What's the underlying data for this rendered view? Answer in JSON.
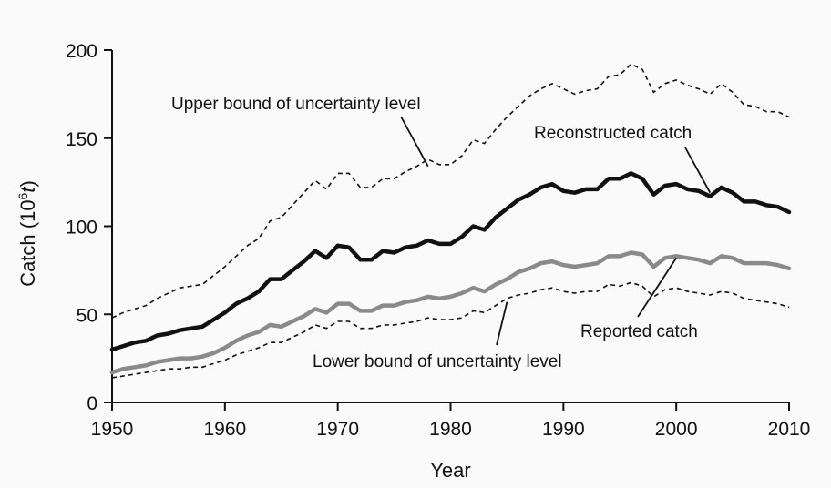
{
  "chart_data": {
    "type": "line",
    "title": "",
    "xlabel": "Year",
    "ylabel": "Catch (10",
    "ylabel_sup": "6",
    "ylabel_unit": "t",
    "ylabel_close": ")",
    "xlim": [
      1950,
      2010
    ],
    "ylim": [
      0,
      200
    ],
    "x_ticks": [
      1950,
      1960,
      1970,
      1980,
      1990,
      2000,
      2010
    ],
    "y_ticks": [
      0,
      50,
      100,
      150,
      200
    ],
    "grid": false,
    "legend": "none (series labeled by annotations)",
    "x": [
      1950,
      1951,
      1952,
      1953,
      1954,
      1955,
      1956,
      1957,
      1958,
      1959,
      1960,
      1961,
      1962,
      1963,
      1964,
      1965,
      1966,
      1967,
      1968,
      1969,
      1970,
      1971,
      1972,
      1973,
      1974,
      1975,
      1976,
      1977,
      1978,
      1979,
      1980,
      1981,
      1982,
      1983,
      1984,
      1985,
      1986,
      1987,
      1988,
      1989,
      1990,
      1991,
      1992,
      1993,
      1994,
      1995,
      1996,
      1997,
      1998,
      1999,
      2000,
      2001,
      2002,
      2003,
      2004,
      2005,
      2006,
      2007,
      2008,
      2009,
      2010
    ],
    "series": [
      {
        "key": "upper",
        "color": "#111111",
        "style": "dashed",
        "values": [
          48,
          51,
          53,
          55,
          59,
          62,
          65,
          66,
          67,
          72,
          77,
          83,
          89,
          93,
          103,
          105,
          112,
          119,
          126,
          121,
          130,
          130,
          122,
          122,
          127,
          127,
          131,
          134,
          138,
          135,
          135,
          140,
          149,
          147,
          155,
          162,
          168,
          174,
          178,
          181,
          178,
          175,
          177,
          178,
          185,
          186,
          192,
          189,
          176,
          181,
          183,
          180,
          178,
          175,
          181,
          176,
          169,
          168,
          165,
          165,
          162
        ],
        "color_name": "black"
      },
      {
        "key": "reconstructed",
        "color": "#111111",
        "style": "solid-thick",
        "values": [
          30,
          32,
          34,
          35,
          38,
          39,
          41,
          42,
          43,
          47,
          51,
          56,
          59,
          63,
          70,
          70,
          75,
          80,
          86,
          82,
          89,
          88,
          81,
          81,
          86,
          85,
          88,
          89,
          92,
          90,
          90,
          94,
          100,
          98,
          105,
          110,
          115,
          118,
          122,
          124,
          120,
          119,
          121,
          121,
          127,
          127,
          130,
          127,
          118,
          123,
          124,
          121,
          120,
          117,
          122,
          119,
          114,
          114,
          112,
          111,
          108
        ],
        "color_name": "black"
      },
      {
        "key": "reported",
        "color": "#8a8a8a",
        "style": "solid-thick",
        "values": [
          17,
          19,
          20,
          21,
          23,
          24,
          25,
          25,
          26,
          28,
          31,
          35,
          38,
          40,
          44,
          43,
          46,
          49,
          53,
          51,
          56,
          56,
          52,
          52,
          55,
          55,
          57,
          58,
          60,
          59,
          60,
          62,
          65,
          63,
          67,
          70,
          74,
          76,
          79,
          80,
          78,
          77,
          78,
          79,
          83,
          83,
          85,
          84,
          77,
          82,
          83,
          82,
          81,
          79,
          83,
          82,
          79,
          79,
          79,
          78,
          76
        ],
        "color_name": "gray"
      },
      {
        "key": "lower",
        "color": "#111111",
        "style": "dashed",
        "values": [
          14,
          15,
          16,
          17,
          18,
          19,
          19,
          20,
          20,
          22,
          24,
          27,
          29,
          31,
          34,
          34,
          37,
          40,
          44,
          42,
          46,
          46,
          42,
          42,
          44,
          44,
          45,
          46,
          48,
          47,
          47,
          48,
          52,
          51,
          55,
          59,
          61,
          62,
          64,
          65,
          63,
          62,
          63,
          63,
          67,
          66,
          68,
          66,
          60,
          64,
          65,
          63,
          62,
          61,
          63,
          62,
          59,
          58,
          57,
          56,
          54
        ],
        "color_name": "black"
      }
    ],
    "annotations": [
      {
        "key": "upper",
        "text": "Upper bound of uncertainty level",
        "anchor_x": 1978,
        "anchor_y": 134
      },
      {
        "key": "reconstructed",
        "text": "Reconstructed catch",
        "anchor_x": 2003,
        "anchor_y": 119
      },
      {
        "key": "reported",
        "text": "Reported catch",
        "anchor_x": 2000,
        "anchor_y": 82
      },
      {
        "key": "lower",
        "text": "Lower bound of uncertainty level",
        "anchor_x": 1985,
        "anchor_y": 57
      }
    ]
  }
}
